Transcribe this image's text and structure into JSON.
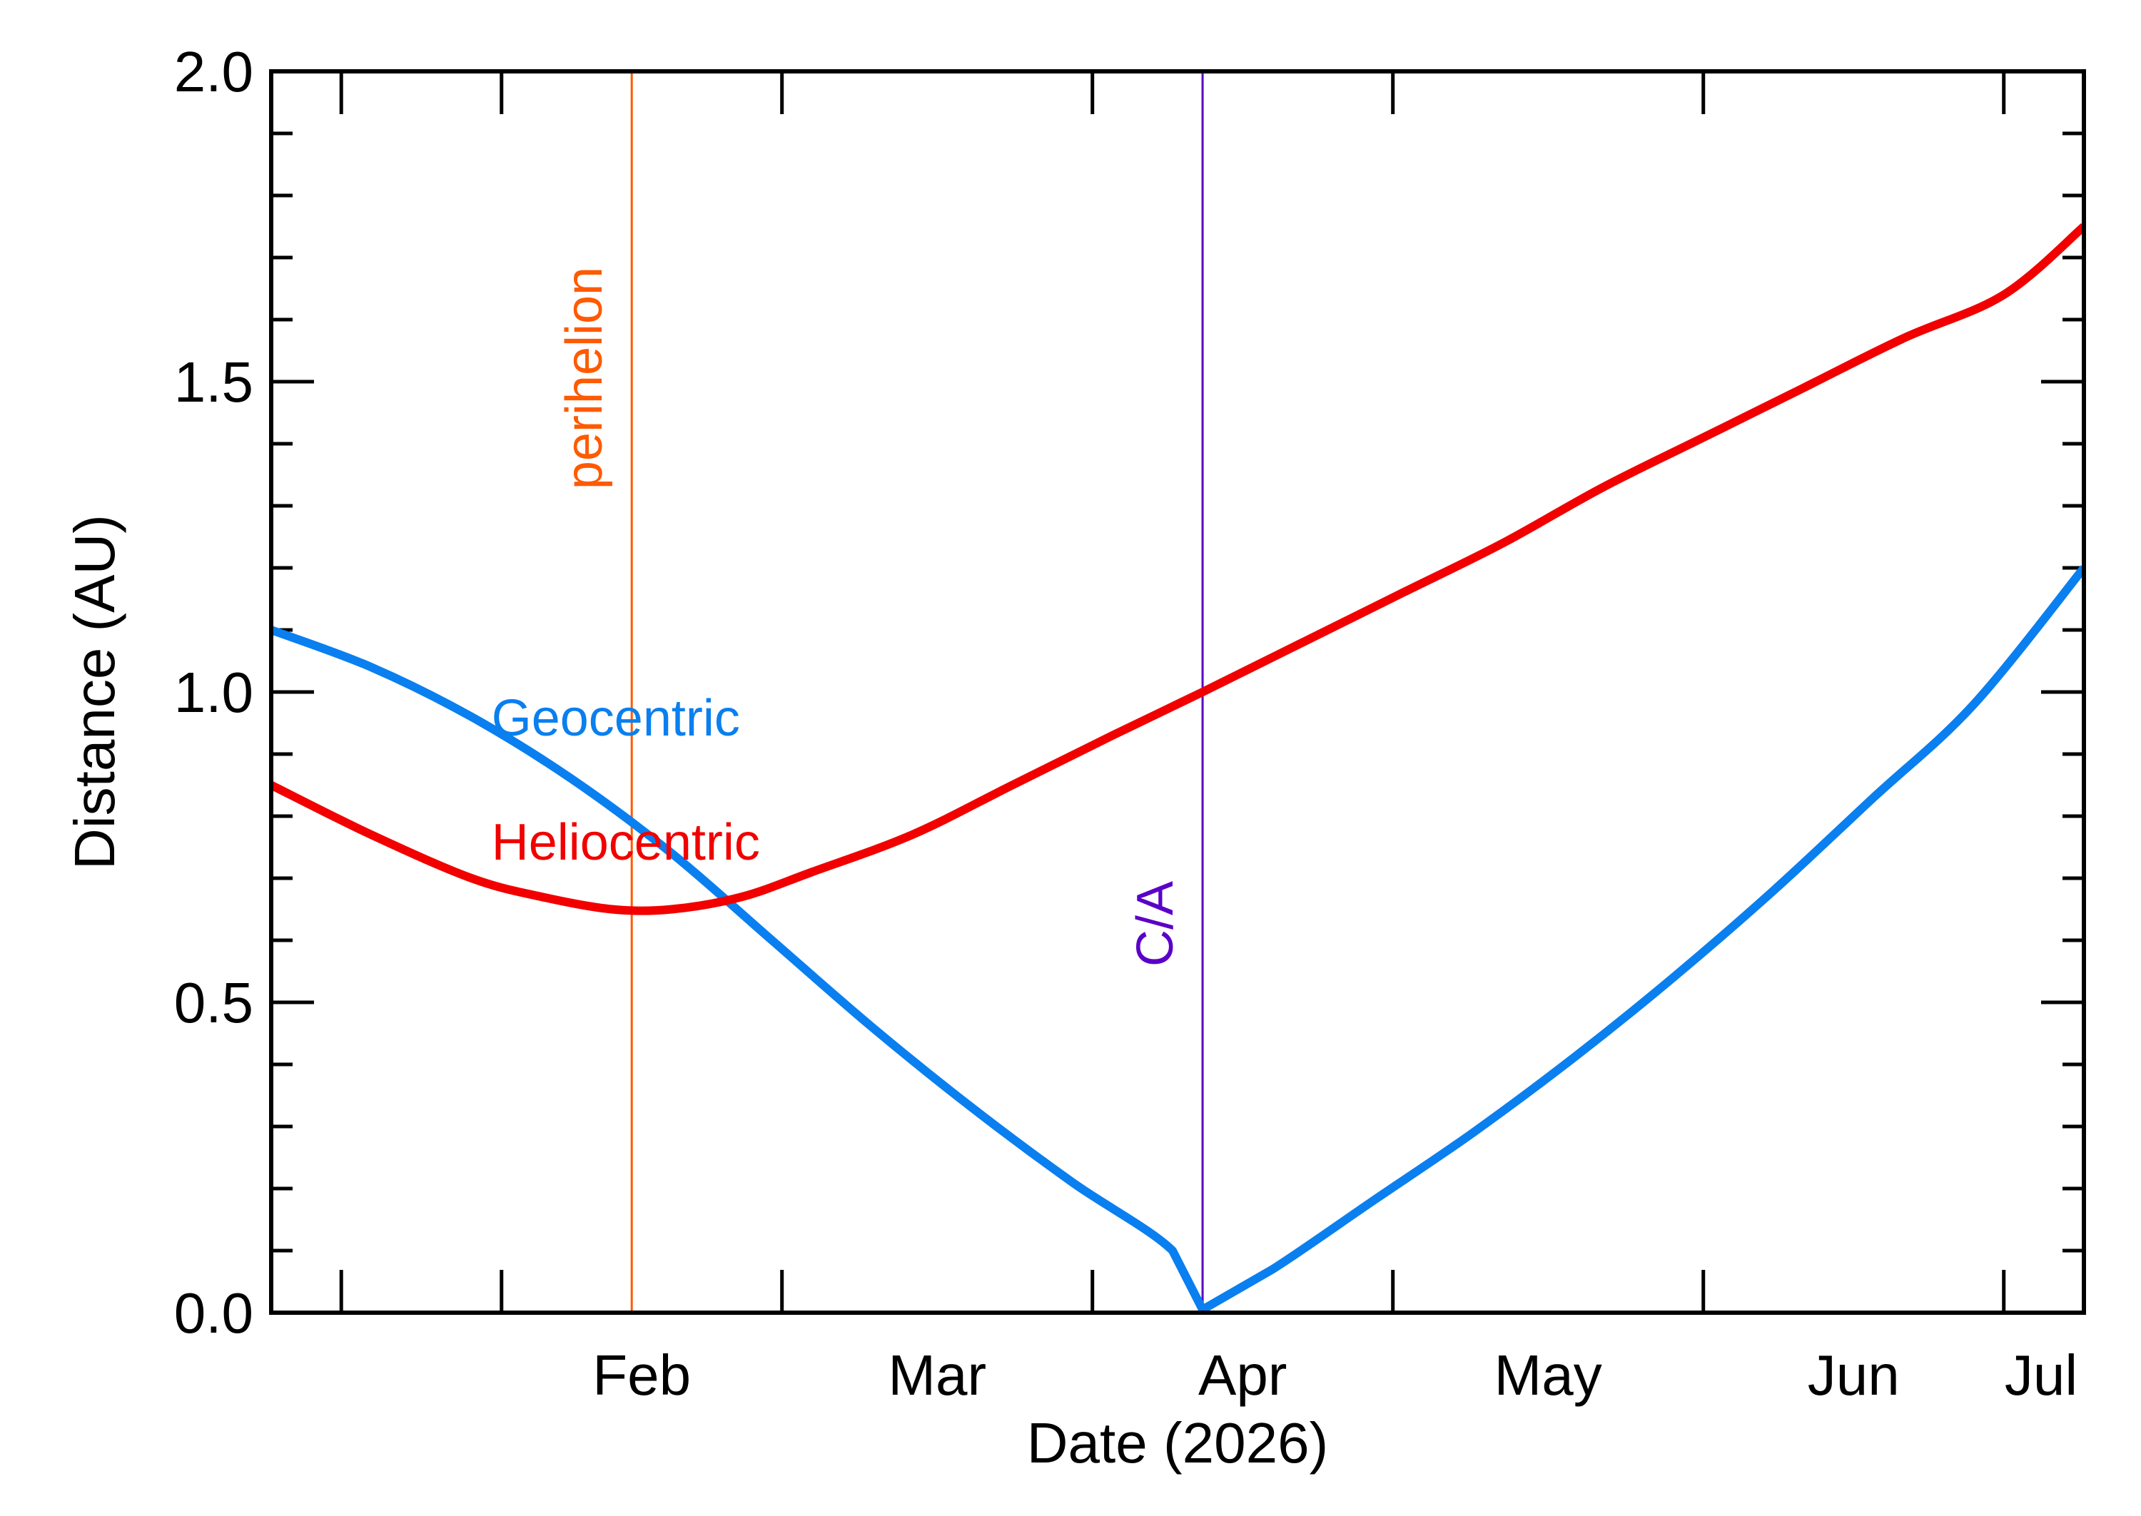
{
  "chart_data": {
    "type": "line",
    "xlabel": "Date (2026)",
    "ylabel": "Distance (AU)",
    "xlim": [
      "2026-01-09",
      "2026-07-09"
    ],
    "ylim": [
      0,
      2.0
    ],
    "x_month_labels": [
      {
        "label": "Feb",
        "date": "2026-02-01"
      },
      {
        "label": "Mar",
        "date": "2026-03-01"
      },
      {
        "label": "Apr",
        "date": "2026-04-01"
      },
      {
        "label": "May",
        "date": "2026-05-01"
      },
      {
        "label": "Jun",
        "date": "2026-06-01"
      },
      {
        "label": "Jul",
        "date": "2026-07-01"
      }
    ],
    "y_ticks": [
      {
        "label": "0.0",
        "value": 0.0
      },
      {
        "label": "0.5",
        "value": 0.5
      },
      {
        "label": "1.0",
        "value": 1.0
      },
      {
        "label": "1.5",
        "value": 1.5
      },
      {
        "label": "2.0",
        "value": 2.0
      }
    ],
    "y_minor_step": 0.1,
    "grid": false,
    "series": [
      {
        "name": "Geocentric",
        "color": "#0a7fef",
        "points": [
          [
            "2026-01-09",
            1.1
          ],
          [
            "2026-01-19",
            1.04
          ],
          [
            "2026-01-29",
            0.96
          ],
          [
            "2026-02-08",
            0.86
          ],
          [
            "2026-02-18",
            0.74
          ],
          [
            "2026-02-28",
            0.6
          ],
          [
            "2026-03-10",
            0.46
          ],
          [
            "2026-03-20",
            0.33
          ],
          [
            "2026-03-30",
            0.21
          ],
          [
            "2026-04-09",
            0.1
          ],
          [
            "2026-04-12",
            0.005
          ],
          [
            "2026-04-19",
            0.07
          ],
          [
            "2026-04-29",
            0.18
          ],
          [
            "2026-05-09",
            0.29
          ],
          [
            "2026-05-19",
            0.41
          ],
          [
            "2026-05-29",
            0.54
          ],
          [
            "2026-06-08",
            0.68
          ],
          [
            "2026-06-18",
            0.83
          ],
          [
            "2026-06-28",
            0.98
          ],
          [
            "2026-07-09",
            1.2
          ]
        ]
      },
      {
        "name": "Heliocentric",
        "color": "#f20000",
        "points": [
          [
            "2026-01-09",
            0.85
          ],
          [
            "2026-01-19",
            0.77
          ],
          [
            "2026-01-29",
            0.7
          ],
          [
            "2026-02-05",
            0.67
          ],
          [
            "2026-02-12",
            0.65
          ],
          [
            "2026-02-18",
            0.65
          ],
          [
            "2026-02-25",
            0.67
          ],
          [
            "2026-03-04",
            0.71
          ],
          [
            "2026-03-14",
            0.77
          ],
          [
            "2026-03-24",
            0.85
          ],
          [
            "2026-04-03",
            0.93
          ],
          [
            "2026-04-12",
            1.0
          ],
          [
            "2026-04-22",
            1.08
          ],
          [
            "2026-05-02",
            1.16
          ],
          [
            "2026-05-12",
            1.24
          ],
          [
            "2026-05-22",
            1.33
          ],
          [
            "2026-06-01",
            1.41
          ],
          [
            "2026-06-11",
            1.49
          ],
          [
            "2026-06-21",
            1.57
          ],
          [
            "2026-07-01",
            1.64
          ],
          [
            "2026-07-09",
            1.75
          ]
        ]
      }
    ],
    "markers": [
      {
        "name": "perihelion",
        "date": "2026-02-14",
        "color": "#ff5a00"
      },
      {
        "name": "C/A",
        "date": "2026-04-12",
        "color": "#5b00c8"
      }
    ],
    "annotations": [
      {
        "text": "Geocentric",
        "color": "#0a7fef",
        "at": [
          "2026-01-31",
          0.93
        ]
      },
      {
        "text": "Heliocentric",
        "color": "#f20000",
        "at": [
          "2026-01-31",
          0.73
        ]
      }
    ]
  }
}
